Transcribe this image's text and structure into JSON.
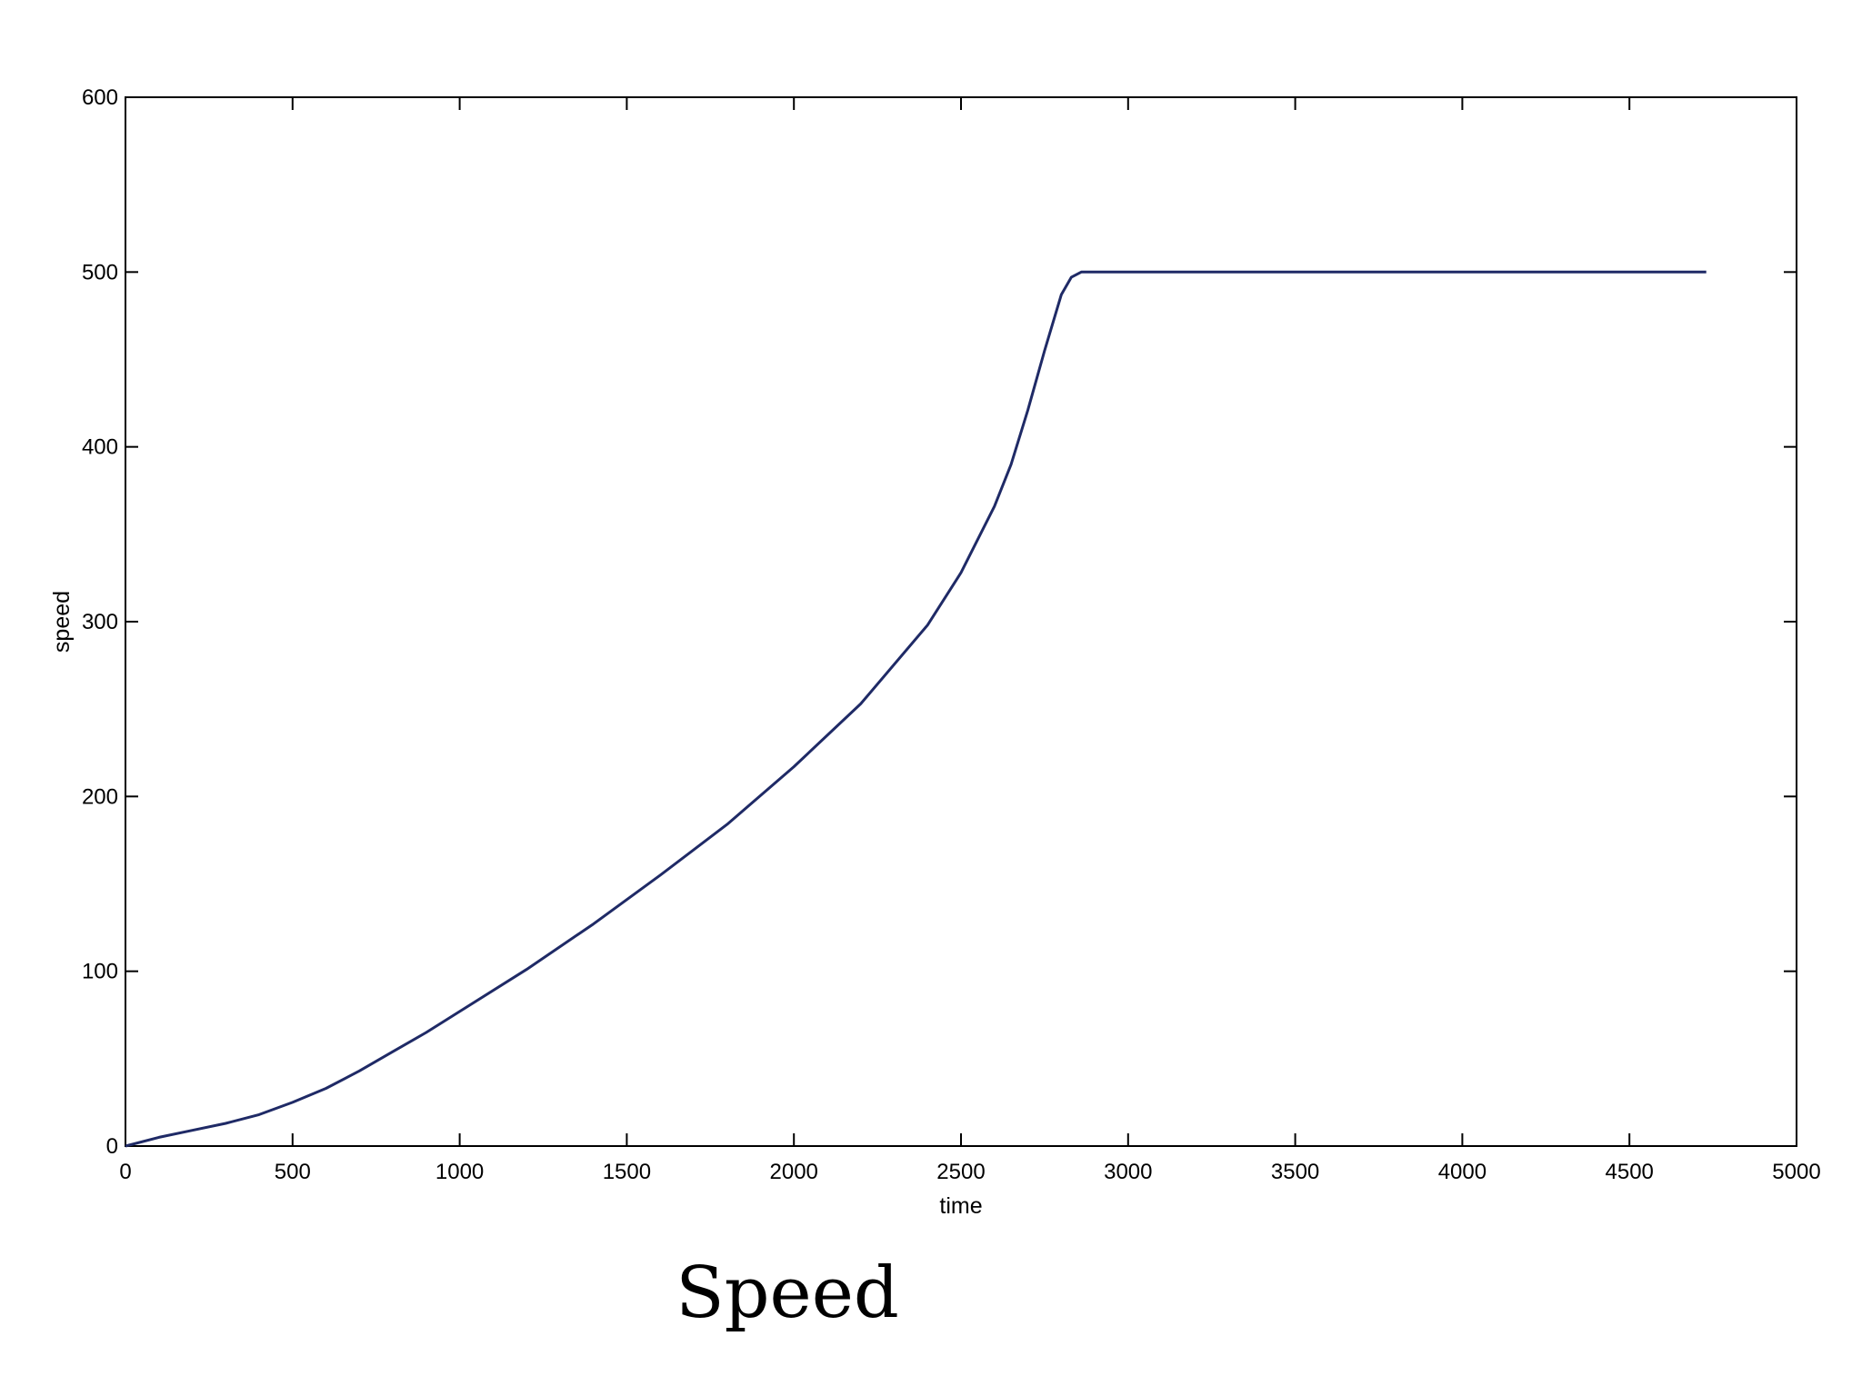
{
  "chart_data": {
    "type": "line",
    "title": "",
    "xlabel": "time",
    "ylabel": "speed",
    "xlim": [
      0,
      5000
    ],
    "ylim": [
      0,
      600
    ],
    "xticks": [
      0,
      500,
      1000,
      1500,
      2000,
      2500,
      3000,
      3500,
      4000,
      4500,
      5000
    ],
    "yticks": [
      0,
      100,
      200,
      300,
      400,
      500,
      600
    ],
    "grid": false,
    "legend": "none",
    "series": [
      {
        "color": "#1f2a66",
        "x": [
          0,
          100,
          200,
          300,
          400,
          500,
          600,
          700,
          800,
          900,
          1000,
          1200,
          1400,
          1600,
          1800,
          2000,
          2200,
          2400,
          2500,
          2600,
          2650,
          2700,
          2750,
          2800,
          2830,
          2860,
          2900,
          3000,
          3500,
          4000,
          4500,
          4730
        ],
        "y": [
          0,
          5,
          9,
          13,
          18,
          25,
          33,
          43,
          54,
          65,
          77,
          101,
          127,
          155,
          184,
          217,
          253,
          298,
          328,
          366,
          390,
          421,
          455,
          487,
          497,
          500,
          500,
          500,
          500,
          500,
          500,
          500
        ]
      }
    ]
  },
  "caption": "Speed"
}
